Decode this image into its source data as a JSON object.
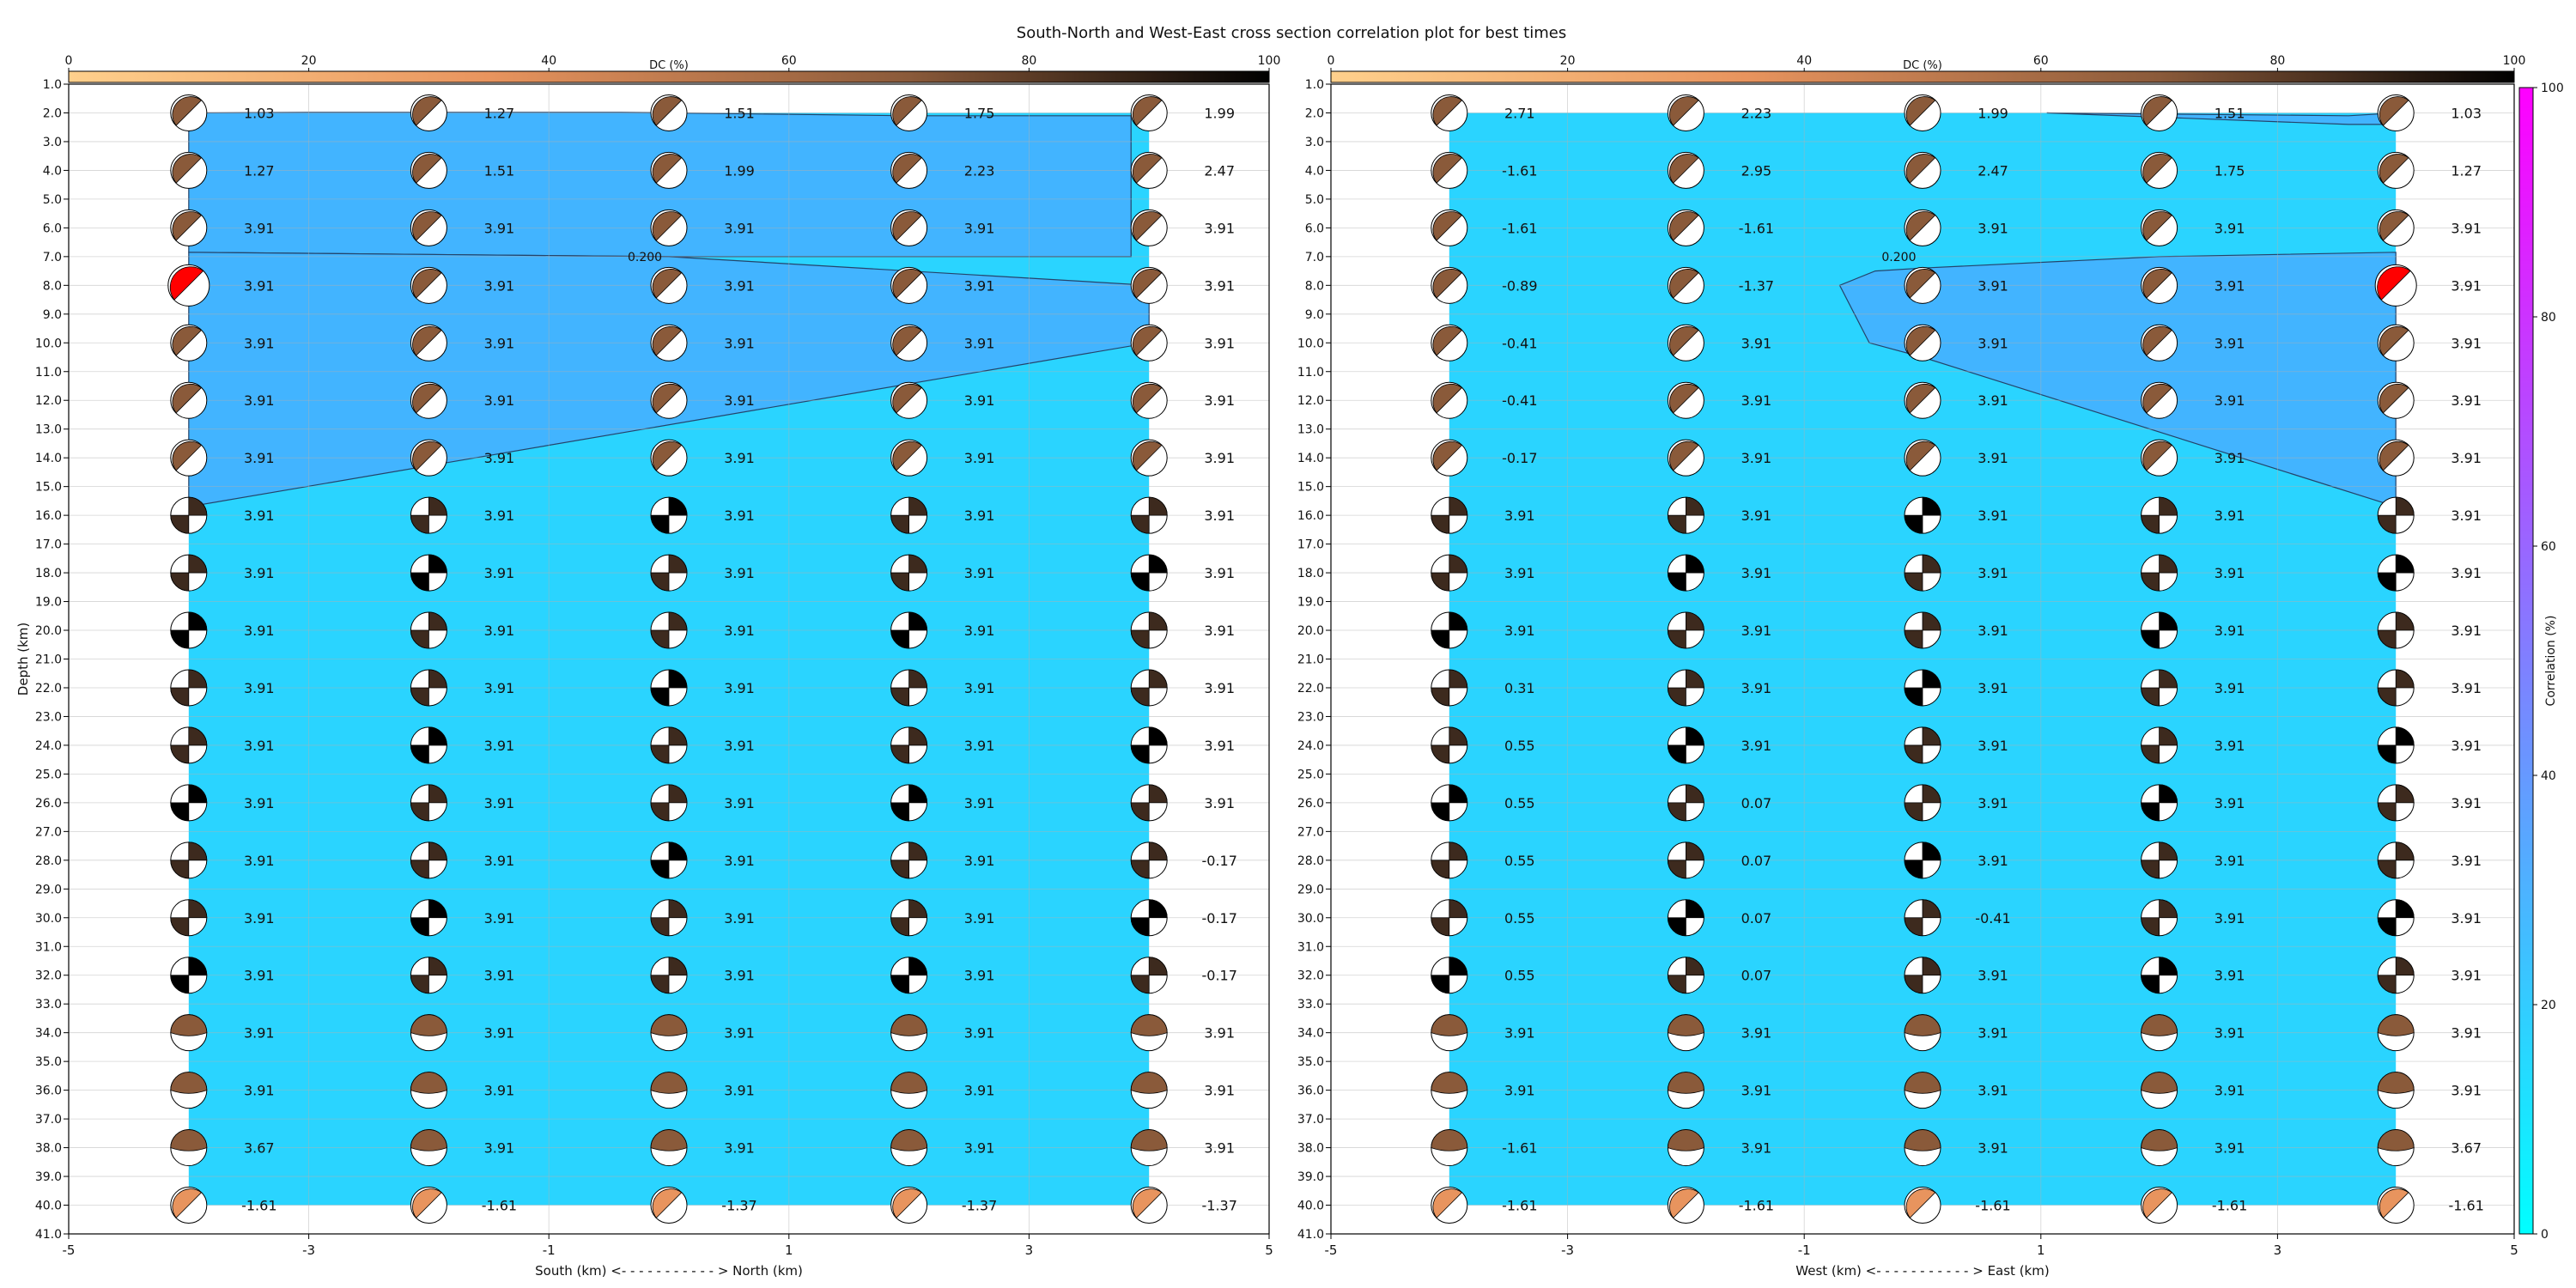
{
  "title": "South-North and West-East cross section correlation plot for best times",
  "colors": {
    "contour_fill": "#42B4FF",
    "bg_fill": "#2AD4FF",
    "corr_cmap": [
      "#00FFFF",
      "#FF00FF"
    ],
    "dc_cmap": [
      "#FFD08C",
      "#E8945E",
      "#8A5A3A",
      "#000000"
    ],
    "best_beachball": "#FF0000"
  },
  "dc_colorbar": {
    "label": "DC (%)",
    "ticks": [
      0,
      20,
      40,
      60,
      80,
      100
    ]
  },
  "corr_colorbar": {
    "label": "Correlation (%)",
    "ticks": [
      0,
      20,
      40,
      60,
      80,
      100
    ]
  },
  "chart_data": [
    {
      "type": "heatmap",
      "panel": "south-north",
      "xlabel": "South (km) <- - - - - - - - - - - > North (km)",
      "ylabel": "Depth (km)",
      "xlim": [
        -5,
        5
      ],
      "ylim": [
        41,
        1
      ],
      "xticks": [
        -5,
        -3,
        -1,
        1,
        3,
        5
      ],
      "yticks": [
        1.0,
        2.0,
        3.0,
        4.0,
        5.0,
        6.0,
        7.0,
        8.0,
        9.0,
        10.0,
        11.0,
        12.0,
        13.0,
        14.0,
        15.0,
        16.0,
        17.0,
        18.0,
        19.0,
        20.0,
        21.0,
        22.0,
        23.0,
        24.0,
        25.0,
        26.0,
        27.0,
        28.0,
        29.0,
        30.0,
        31.0,
        32.0,
        33.0,
        34.0,
        35.0,
        36.0,
        37.0,
        38.0,
        39.0,
        40.0,
        41.0
      ],
      "grid": true,
      "x": [
        -4,
        -2,
        0,
        2,
        4
      ],
      "depths": [
        2,
        4,
        6,
        8,
        10,
        12,
        14,
        16,
        18,
        20,
        22,
        24,
        26,
        28,
        30,
        32,
        34,
        36,
        38,
        40
      ],
      "time_labels": [
        [
          "1.03",
          "1.27",
          "1.51",
          "1.75",
          "1.99"
        ],
        [
          "1.27",
          "1.51",
          "1.99",
          "2.23",
          "2.47"
        ],
        [
          "3.91",
          "3.91",
          "3.91",
          "3.91",
          "3.91"
        ],
        [
          "3.91",
          "3.91",
          "3.91",
          "3.91",
          "3.91"
        ],
        [
          "3.91",
          "3.91",
          "3.91",
          "3.91",
          "3.91"
        ],
        [
          "3.91",
          "3.91",
          "3.91",
          "3.91",
          "3.91"
        ],
        [
          "3.91",
          "3.91",
          "3.91",
          "3.91",
          "3.91"
        ],
        [
          "3.91",
          "3.91",
          "3.91",
          "3.91",
          "3.91"
        ],
        [
          "3.91",
          "3.91",
          "3.91",
          "3.91",
          "3.91"
        ],
        [
          "3.91",
          "3.91",
          "3.91",
          "3.91",
          "3.91"
        ],
        [
          "3.91",
          "3.91",
          "3.91",
          "3.91",
          "3.91"
        ],
        [
          "3.91",
          "3.91",
          "3.91",
          "3.91",
          "3.91"
        ],
        [
          "3.91",
          "3.91",
          "3.91",
          "3.91",
          "3.91"
        ],
        [
          "3.91",
          "3.91",
          "3.91",
          "3.91",
          "-0.17"
        ],
        [
          "3.91",
          "3.91",
          "3.91",
          "3.91",
          "-0.17"
        ],
        [
          "3.91",
          "3.91",
          "3.91",
          "3.91",
          "-0.17"
        ],
        [
          "3.91",
          "3.91",
          "3.91",
          "3.91",
          "3.91"
        ],
        [
          "3.91",
          "3.91",
          "3.91",
          "3.91",
          "3.91"
        ],
        [
          "3.67",
          "3.91",
          "3.91",
          "3.91",
          "3.91"
        ],
        [
          "-1.61",
          "-1.61",
          "-1.37",
          "-1.37",
          "-1.37"
        ]
      ],
      "contour_label": "0.200",
      "contour_polygon": [
        [
          -4,
          2
        ],
        [
          -3.0,
          1.98
        ],
        [
          -0.4,
          1.98
        ],
        [
          2,
          2.1
        ],
        [
          3.85,
          2.1
        ],
        [
          3.85,
          7.0
        ],
        [
          0,
          7.0
        ],
        [
          -4,
          6.85
        ],
        [
          -4,
          2
        ]
      ],
      "contour_polygon_2": [
        [
          -4,
          6.85
        ],
        [
          0,
          7.0
        ],
        [
          4,
          8.0
        ],
        [
          4,
          10.0
        ],
        [
          -4,
          15.7
        ],
        [
          -4,
          6.85
        ]
      ],
      "best_cell": [
        0,
        3
      ]
    },
    {
      "type": "heatmap",
      "panel": "west-east",
      "xlabel": "West (km) <- - - - - - - - - - - > East (km)",
      "xlim": [
        -5,
        5
      ],
      "ylim": [
        41,
        1
      ],
      "xticks": [
        -5,
        -3,
        -1,
        1,
        3,
        5
      ],
      "yticks": [
        1.0,
        2.0,
        3.0,
        4.0,
        5.0,
        6.0,
        7.0,
        8.0,
        9.0,
        10.0,
        11.0,
        12.0,
        13.0,
        14.0,
        15.0,
        16.0,
        17.0,
        18.0,
        19.0,
        20.0,
        21.0,
        22.0,
        23.0,
        24.0,
        25.0,
        26.0,
        27.0,
        28.0,
        29.0,
        30.0,
        31.0,
        32.0,
        33.0,
        34.0,
        35.0,
        36.0,
        37.0,
        38.0,
        39.0,
        40.0,
        41.0
      ],
      "grid": true,
      "x": [
        -4,
        -2,
        0,
        2,
        4
      ],
      "depths": [
        2,
        4,
        6,
        8,
        10,
        12,
        14,
        16,
        18,
        20,
        22,
        24,
        26,
        28,
        30,
        32,
        34,
        36,
        38,
        40
      ],
      "time_labels": [
        [
          "2.71",
          "2.23",
          "1.99",
          "1.51",
          "1.03"
        ],
        [
          "-1.61",
          "2.95",
          "2.47",
          "1.75",
          "1.27"
        ],
        [
          "-1.61",
          "-1.61",
          "3.91",
          "3.91",
          "3.91"
        ],
        [
          "-0.89",
          "-1.37",
          "3.91",
          "3.91",
          "3.91"
        ],
        [
          "-0.41",
          "3.91",
          "3.91",
          "3.91",
          "3.91"
        ],
        [
          "-0.41",
          "3.91",
          "3.91",
          "3.91",
          "3.91"
        ],
        [
          "-0.17",
          "3.91",
          "3.91",
          "3.91",
          "3.91"
        ],
        [
          "3.91",
          "3.91",
          "3.91",
          "3.91",
          "3.91"
        ],
        [
          "3.91",
          "3.91",
          "3.91",
          "3.91",
          "3.91"
        ],
        [
          "3.91",
          "3.91",
          "3.91",
          "3.91",
          "3.91"
        ],
        [
          "0.31",
          "3.91",
          "3.91",
          "3.91",
          "3.91"
        ],
        [
          "0.55",
          "3.91",
          "3.91",
          "3.91",
          "3.91"
        ],
        [
          "0.55",
          "0.07",
          "3.91",
          "3.91",
          "3.91"
        ],
        [
          "0.55",
          "0.07",
          "3.91",
          "3.91",
          "3.91"
        ],
        [
          "0.55",
          "0.07",
          "-0.41",
          "3.91",
          "3.91"
        ],
        [
          "0.55",
          "0.07",
          "3.91",
          "3.91",
          "3.91"
        ],
        [
          "3.91",
          "3.91",
          "3.91",
          "3.91",
          "3.91"
        ],
        [
          "3.91",
          "3.91",
          "3.91",
          "3.91",
          "3.91"
        ],
        [
          "-1.61",
          "3.91",
          "3.91",
          "3.91",
          "3.67"
        ],
        [
          "-1.61",
          "-1.61",
          "-1.61",
          "-1.61",
          "-1.61"
        ]
      ],
      "contour_label": "0.200",
      "contour_polygon": [
        [
          1.05,
          2.0
        ],
        [
          3.6,
          2.1
        ],
        [
          4,
          2.0
        ],
        [
          4,
          2.4
        ],
        [
          3.6,
          2.4
        ],
        [
          1.05,
          2.0
        ]
      ],
      "contour_polygon_2": [
        [
          4,
          6.85
        ],
        [
          2,
          7.0
        ],
        [
          0,
          7.4
        ],
        [
          -0.4,
          7.5
        ],
        [
          -0.7,
          8.0
        ],
        [
          -0.45,
          10.0
        ],
        [
          0,
          10.5
        ],
        [
          4,
          15.7
        ],
        [
          4,
          6.85
        ]
      ],
      "best_cell": [
        4,
        3
      ]
    }
  ]
}
